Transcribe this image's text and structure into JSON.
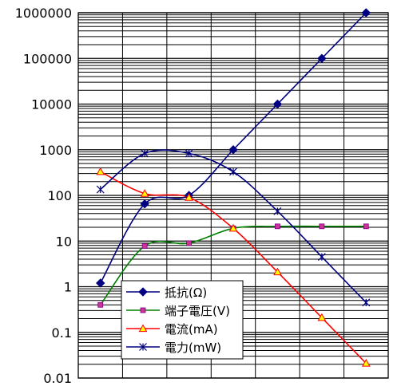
{
  "chart_data": {
    "type": "line",
    "x": [
      1,
      2,
      3,
      4,
      5,
      6,
      7
    ],
    "yscale": "log",
    "ylim": [
      0.01,
      1000000
    ],
    "yticks": [
      "0.01",
      "0.1",
      "1",
      "10",
      "100",
      "1000",
      "10000",
      "100000",
      "1000000"
    ],
    "grid": true,
    "legend_position": "bottom-center",
    "series": [
      {
        "name": "抵抗(Ω)",
        "marker": "diamond",
        "color": "#000080",
        "values": [
          1.2,
          65,
          100,
          1000,
          10000,
          100000,
          1000000
        ]
      },
      {
        "name": "端子電圧(V)",
        "marker": "square",
        "color": "#008000",
        "values": [
          0.4,
          7.8,
          9.0,
          19,
          21,
          21,
          21
        ]
      },
      {
        "name": "電流(mA)",
        "marker": "triangle",
        "color": "#ff0000",
        "values": [
          330,
          110,
          90,
          19,
          2.1,
          0.21,
          0.021
        ]
      },
      {
        "name": "電力(mW)",
        "marker": "star",
        "color": "#000080",
        "values": [
          135,
          830,
          830,
          330,
          45,
          4.5,
          0.45
        ]
      }
    ]
  }
}
